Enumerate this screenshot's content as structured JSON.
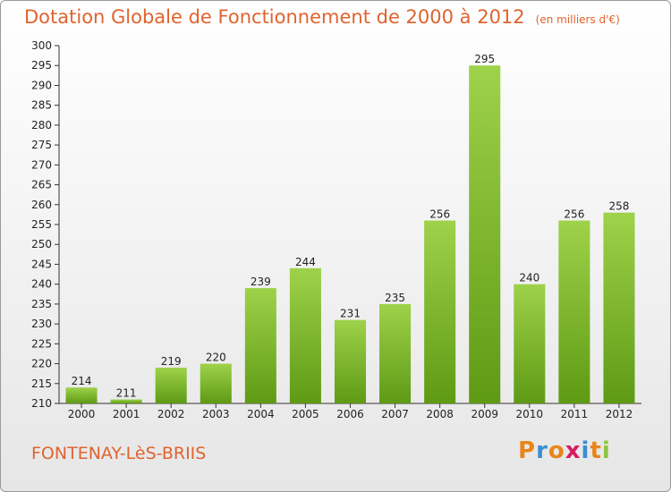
{
  "header": {
    "title": "Dotation Globale de Fonctionnement de 2000 à 2012",
    "subtitle": "(en milliers d'€)"
  },
  "footer": {
    "commune": "FONTENAY-LèS-BRIIS",
    "logo": "Proxiti"
  },
  "colors": {
    "accent": "#e0632e",
    "bar_light": "#9ed24a",
    "bar_dark": "#5f9a14",
    "logo_letters": [
      "#e8861a",
      "#3a8fd0",
      "#e8861a",
      "#d81b60",
      "#3a8fd0",
      "#e8861a",
      "#8cc63f"
    ]
  },
  "chart_data": {
    "type": "bar",
    "categories": [
      "2000",
      "2001",
      "2002",
      "2003",
      "2004",
      "2005",
      "2006",
      "2007",
      "2008",
      "2009",
      "2010",
      "2011",
      "2012"
    ],
    "values": [
      214,
      211,
      219,
      220,
      239,
      244,
      231,
      235,
      256,
      295,
      240,
      256,
      258
    ],
    "ylim": [
      210,
      300
    ],
    "ytick_step": 5,
    "grid": false,
    "legend": "none"
  }
}
